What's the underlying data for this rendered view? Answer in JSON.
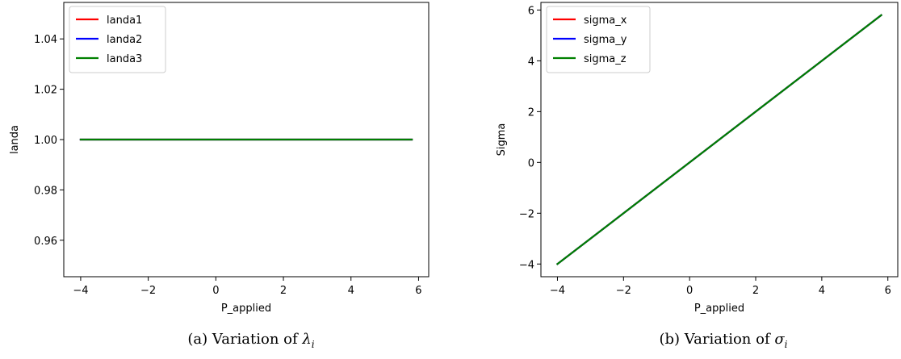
{
  "chart_data": [
    {
      "type": "line",
      "xlabel": "P_applied",
      "ylabel": "landa",
      "xlim": [
        -4.5,
        6.3
      ],
      "ylim": [
        0.9455,
        1.0545
      ],
      "xticks": [
        -4,
        -2,
        0,
        2,
        4,
        6
      ],
      "xtick_labels": [
        "−4",
        "−2",
        "0",
        "2",
        "4",
        "6"
      ],
      "yticks": [
        0.96,
        0.98,
        1.0,
        1.02,
        1.04
      ],
      "ytick_labels": [
        "0.96",
        "0.98",
        "1.00",
        "1.02",
        "1.04"
      ],
      "grid": false,
      "legend_position": "top-left",
      "series": [
        {
          "name": "landa1",
          "color": "#ff0000",
          "x": [
            -4.0,
            5.8
          ],
          "y": [
            1.0,
            1.0
          ]
        },
        {
          "name": "landa2",
          "color": "#0000ff",
          "x": [
            -4.0,
            5.8
          ],
          "y": [
            1.0,
            1.0
          ]
        },
        {
          "name": "landa3",
          "color": "#008000",
          "x": [
            -4.0,
            5.8
          ],
          "y": [
            1.0,
            1.0
          ]
        }
      ],
      "caption": {
        "prefix": "(a) Variation of ",
        "symbol": "λ",
        "sub": "i"
      }
    },
    {
      "type": "line",
      "xlabel": "P_applied",
      "ylabel": "Sigma",
      "xlim": [
        -4.5,
        6.3
      ],
      "ylim": [
        -4.5,
        6.3
      ],
      "xticks": [
        -4,
        -2,
        0,
        2,
        4,
        6
      ],
      "xtick_labels": [
        "−4",
        "−2",
        "0",
        "2",
        "4",
        "6"
      ],
      "yticks": [
        -4,
        -2,
        0,
        2,
        4,
        6
      ],
      "ytick_labels": [
        "−4",
        "−2",
        "0",
        "2",
        "4",
        "6"
      ],
      "grid": false,
      "legend_position": "top-left",
      "series": [
        {
          "name": "sigma_x",
          "color": "#ff0000",
          "x": [
            -4.0,
            5.8
          ],
          "y": [
            -4.0,
            5.8
          ]
        },
        {
          "name": "sigma_y",
          "color": "#0000ff",
          "x": [
            -4.0,
            5.8
          ],
          "y": [
            -4.0,
            5.8
          ]
        },
        {
          "name": "sigma_z",
          "color": "#008000",
          "x": [
            -4.0,
            5.8
          ],
          "y": [
            -4.0,
            5.8
          ]
        }
      ],
      "caption": {
        "prefix": "(b) Variation of ",
        "symbol": "σ",
        "sub": "i"
      }
    }
  ]
}
